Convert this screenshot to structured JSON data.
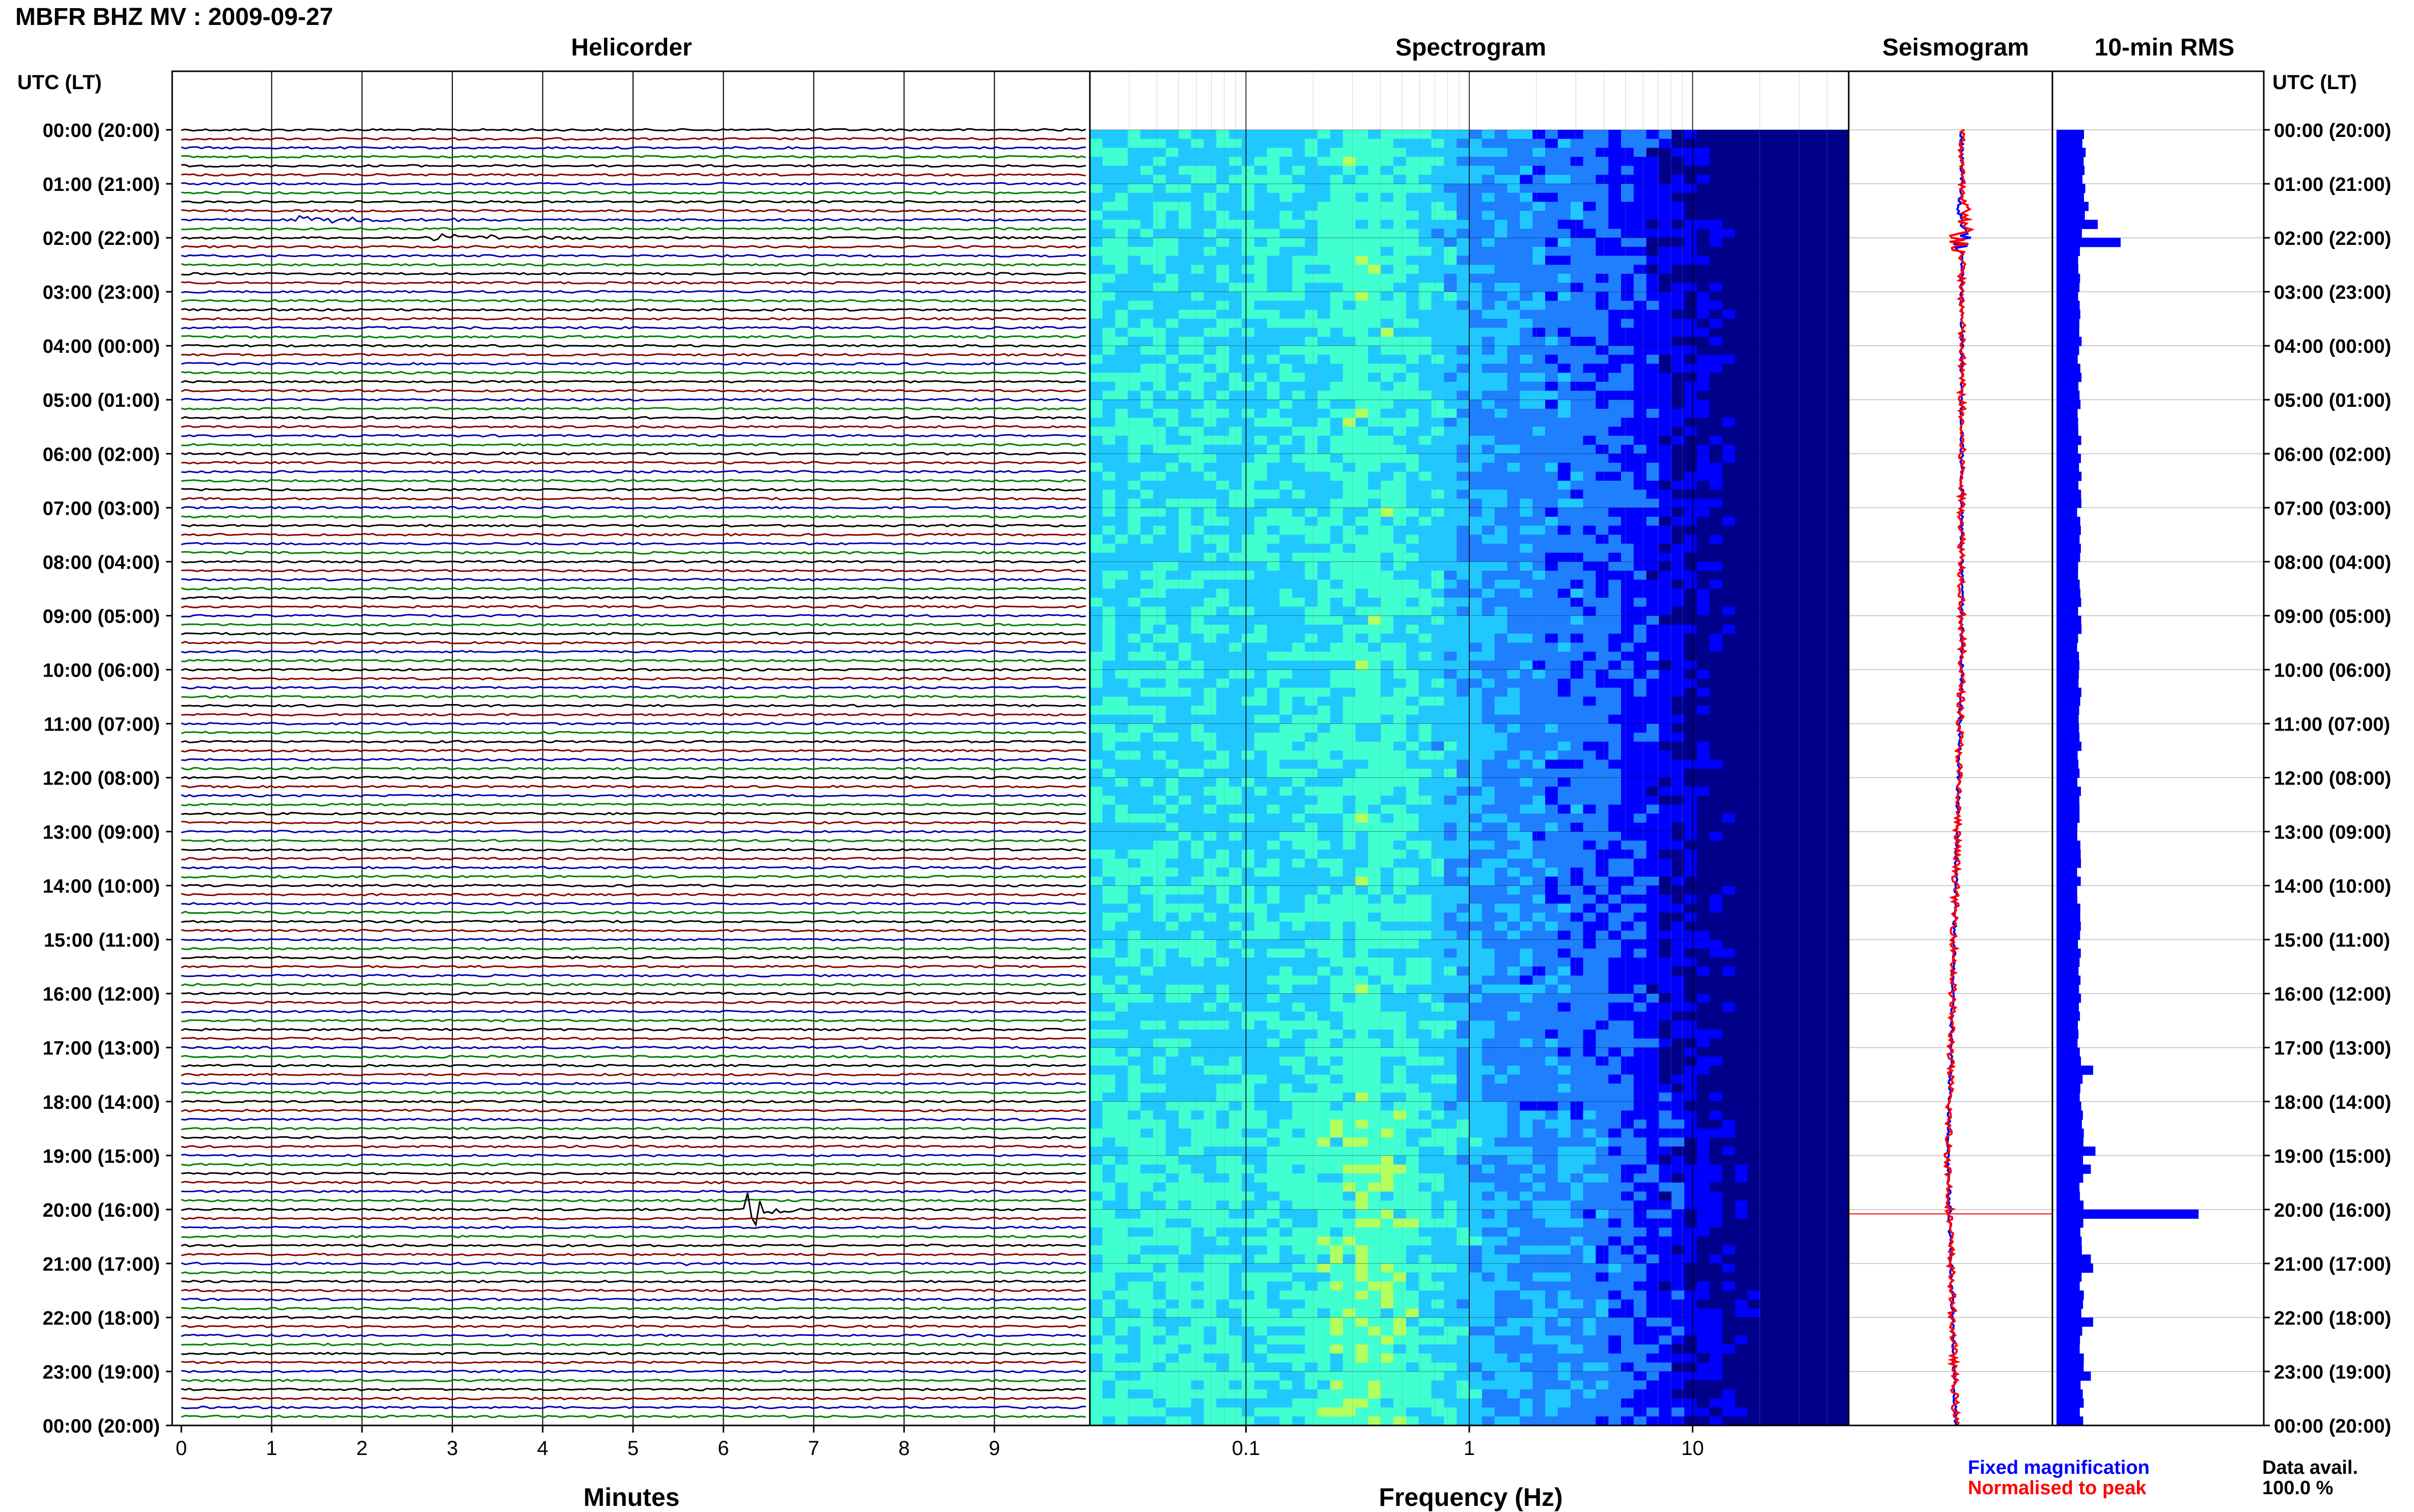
{
  "figure": {
    "title": "MBFR BHZ MV : 2009-09-27",
    "time_axis_label": "UTC (LT)",
    "data_avail_label": "Data avail.",
    "data_avail_value": "100.0 %",
    "legend_fixed": "Fixed magnification",
    "legend_normalised": "Normalised to peak",
    "colors": {
      "trace_cycle": [
        "#000000",
        "#8b0000",
        "#0000b4",
        "#008000"
      ],
      "rms_bar": "#0000ff",
      "seis_fixed": "#0000ff",
      "seis_norm": "#ff0000",
      "event_line": "#ff0000"
    }
  },
  "chart_data": [
    {
      "type": "line",
      "title": "Helicorder",
      "xlabel": "Minutes",
      "xlim": [
        0,
        10
      ],
      "x_ticks": [
        "0",
        "1",
        "2",
        "3",
        "4",
        "5",
        "6",
        "7",
        "8",
        "9"
      ],
      "y_ticks": [
        "00:00 (20:00)",
        "01:00 (21:00)",
        "02:00 (22:00)",
        "03:00 (23:00)",
        "04:00 (00:00)",
        "05:00 (01:00)",
        "06:00 (02:00)",
        "07:00 (03:00)",
        "08:00 (04:00)",
        "09:00 (05:00)",
        "10:00 (06:00)",
        "11:00 (07:00)",
        "12:00 (08:00)",
        "13:00 (09:00)",
        "14:00 (10:00)",
        "15:00 (11:00)",
        "16:00 (12:00)",
        "17:00 (13:00)",
        "18:00 (14:00)",
        "19:00 (15:00)",
        "20:00 (16:00)",
        "21:00 (17:00)",
        "22:00 (18:00)",
        "23:00 (19:00)",
        "00:00 (20:00)"
      ],
      "rows_per_hour": 6,
      "events": [
        {
          "hour": 1.67,
          "minute": 1.3,
          "amp": 0.35,
          "dur": 3.5
        },
        {
          "hour": 2.0,
          "minute": 2.7,
          "amp": 0.45,
          "dur": 3.5
        },
        {
          "hour": 3.17,
          "minute": 4.3,
          "amp": 0.15,
          "dur": 0.5
        },
        {
          "hour": 6.0,
          "minute": 3.5,
          "amp": 0.2,
          "dur": 0.5
        },
        {
          "hour": 8.83,
          "minute": 7.6,
          "amp": 0.15,
          "dur": 0.4
        },
        {
          "hour": 14.67,
          "minute": 3.9,
          "amp": 0.15,
          "dur": 0.6
        },
        {
          "hour": 17.17,
          "minute": 2.9,
          "amp": 0.25,
          "dur": 0.8
        },
        {
          "hour": 20.0,
          "minute": 6.3,
          "amp": 2.4,
          "dur": 0.6
        },
        {
          "hour": 20.83,
          "minute": 7.8,
          "amp": 0.2,
          "dur": 0.4
        },
        {
          "hour": 21.0,
          "minute": 5.6,
          "amp": 0.2,
          "dur": 0.5
        }
      ]
    },
    {
      "type": "heatmap",
      "title": "Spectrogram",
      "xlabel": "Frequency (Hz)",
      "x_scale": "log",
      "xlim": [
        0.02,
        50
      ],
      "x_ticks": [
        0.1,
        1,
        10
      ],
      "x_tick_labels": [
        "0.1",
        "1",
        "10"
      ],
      "colormap": [
        "#00008b",
        "#0000ff",
        "#1e7fff",
        "#20c8ff",
        "#40ffd0",
        "#b4ff60"
      ]
    },
    {
      "type": "line",
      "title": "Seismogram",
      "description_series": [
        "Fixed magnification",
        "Normalised to peak"
      ],
      "event_hour": 20.08
    },
    {
      "type": "bar",
      "title": "10-min RMS",
      "orientation": "horizontal",
      "bins_per_hour": 6,
      "baseline": 1.0,
      "peaks": [
        {
          "hour": 1.33,
          "value": 1.4
        },
        {
          "hour": 1.67,
          "value": 1.8
        },
        {
          "hour": 2.0,
          "value": 2.8
        },
        {
          "hour": 17.33,
          "value": 1.6
        },
        {
          "hour": 18.83,
          "value": 1.7
        },
        {
          "hour": 19.17,
          "value": 1.5
        },
        {
          "hour": 20.0,
          "value": 6.2
        },
        {
          "hour": 20.83,
          "value": 1.5
        },
        {
          "hour": 21.0,
          "value": 1.6
        },
        {
          "hour": 22.0,
          "value": 1.6
        },
        {
          "hour": 23.0,
          "value": 1.5
        }
      ]
    }
  ]
}
